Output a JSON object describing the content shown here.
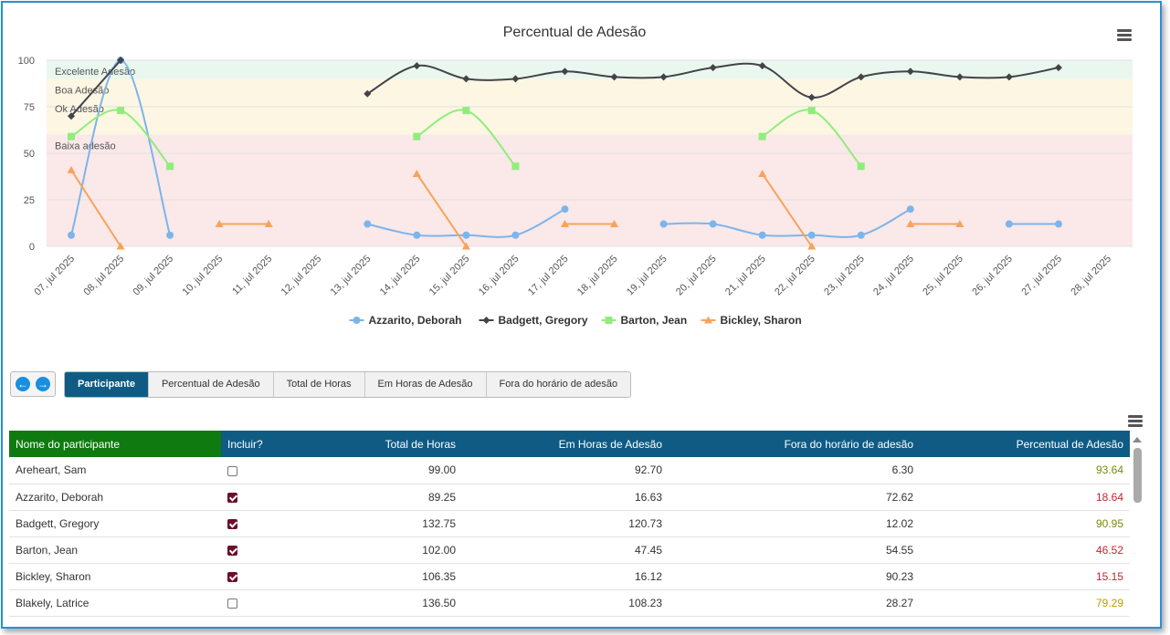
{
  "chart_data": {
    "type": "line",
    "title": "Percentual de Adesão",
    "categories": [
      "07, jul 2025",
      "08, jul 2025",
      "09, jul 2025",
      "10, jul 2025",
      "11, jul 2025",
      "12, jul 2025",
      "13, jul 2025",
      "14, jul 2025",
      "15, jul 2025",
      "16, jul 2025",
      "17, jul 2025",
      "18, jul 2025",
      "19, jul 2025",
      "20, jul 2025",
      "21, jul 2025",
      "22, jul 2025",
      "23, jul 2025",
      "24, jul 2025",
      "25, jul 2025",
      "26, jul 2025",
      "27, jul 2025",
      "28, jul 2025"
    ],
    "ylim": [
      0,
      100
    ],
    "yticks": [
      0,
      25,
      50,
      75,
      100
    ],
    "bands": [
      {
        "label": "Excelente Adesão",
        "from": 90,
        "to": 100,
        "color": "#eaf7ee"
      },
      {
        "label": "Boa Adesão",
        "from": 80,
        "to": 90,
        "color": "#fcf6e3"
      },
      {
        "label": "Ok Adesão",
        "from": 60,
        "to": 80,
        "color": "#fcf6e3"
      },
      {
        "label": "Baixa adesão",
        "from": 0,
        "to": 60,
        "color": "#fbe8e8"
      }
    ],
    "series": [
      {
        "name": "Azzarito, Deborah",
        "color": "#7cb5ec",
        "marker": "circle",
        "values": [
          6,
          100,
          6,
          null,
          null,
          null,
          12,
          6,
          6,
          6,
          20,
          null,
          12,
          12,
          6,
          6,
          6,
          20,
          null,
          12,
          12,
          null
        ]
      },
      {
        "name": "Badgett, Gregory",
        "color": "#434348",
        "marker": "diamond",
        "values": [
          70,
          100,
          null,
          null,
          null,
          null,
          82,
          97,
          90,
          90,
          94,
          91,
          91,
          96,
          97,
          80,
          91,
          94,
          91,
          91,
          96,
          null
        ]
      },
      {
        "name": "Barton, Jean",
        "color": "#90ed7d",
        "marker": "square",
        "values": [
          59,
          73,
          43,
          null,
          null,
          null,
          null,
          59,
          73,
          43,
          null,
          null,
          null,
          null,
          59,
          73,
          43,
          null,
          null,
          null,
          null,
          null
        ]
      },
      {
        "name": "Bickley, Sharon",
        "color": "#f7a35c",
        "marker": "triangle",
        "values": [
          41,
          0,
          null,
          12,
          12,
          null,
          null,
          39,
          0,
          null,
          12,
          12,
          null,
          null,
          39,
          0,
          null,
          12,
          12,
          null,
          null,
          null
        ]
      }
    ],
    "legend": "bottom",
    "grid": true
  },
  "tabs": [
    {
      "label": "Participante",
      "active": true
    },
    {
      "label": "Percentual de Adesão",
      "active": false
    },
    {
      "label": "Total de Horas",
      "active": false
    },
    {
      "label": "Em Horas de Adesão",
      "active": false
    },
    {
      "label": "Fora do horário de adesão",
      "active": false
    }
  ],
  "nav": {
    "prev_icon": "arrow-left-icon",
    "next_icon": "arrow-right-icon"
  },
  "table": {
    "headers": {
      "name": "Nome do participante",
      "include": "Incluir?",
      "total": "Total de Horas",
      "in_hours": "Em Horas de Adesão",
      "out_hours": "Fora do horário de adesão",
      "pct": "Percentual de Adesão"
    },
    "rows": [
      {
        "name": "Areheart, Sam",
        "include": false,
        "total": "99.00",
        "in_hours": "92.70",
        "out_hours": "6.30",
        "pct": "93.64",
        "pct_class": "pct-good"
      },
      {
        "name": "Azzarito, Deborah",
        "include": true,
        "total": "89.25",
        "in_hours": "16.63",
        "out_hours": "72.62",
        "pct": "18.64",
        "pct_class": "pct-bad"
      },
      {
        "name": "Badgett, Gregory",
        "include": true,
        "total": "132.75",
        "in_hours": "120.73",
        "out_hours": "12.02",
        "pct": "90.95",
        "pct_class": "pct-good"
      },
      {
        "name": "Barton, Jean",
        "include": true,
        "total": "102.00",
        "in_hours": "47.45",
        "out_hours": "54.55",
        "pct": "46.52",
        "pct_class": "pct-bad"
      },
      {
        "name": "Bickley, Sharon",
        "include": true,
        "total": "106.35",
        "in_hours": "16.12",
        "out_hours": "90.23",
        "pct": "15.15",
        "pct_class": "pct-bad"
      },
      {
        "name": "Blakely, Latrice",
        "include": false,
        "total": "136.50",
        "in_hours": "108.23",
        "out_hours": "28.27",
        "pct": "79.29",
        "pct_class": "pct-mid"
      }
    ]
  },
  "colors": {
    "accent": "#0f5b84",
    "name_header": "#0f7a0f",
    "checkbox": "#6b0f2a",
    "frame": "#2b8fd6"
  }
}
